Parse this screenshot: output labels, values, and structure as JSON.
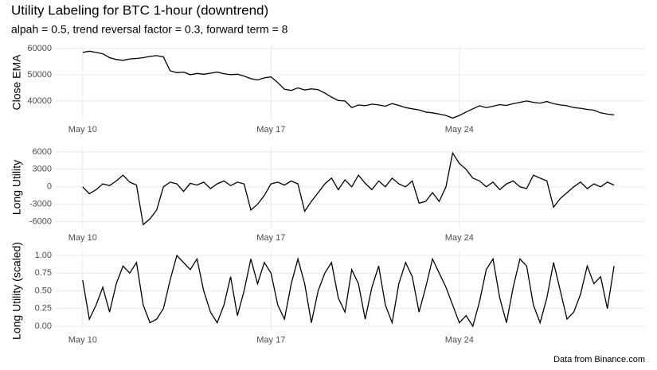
{
  "chart_data": [
    {
      "type": "line",
      "title": "Utility Labeling for BTC 1-hour (downtrend)",
      "subtitle": "alpah = 0.5, trend reversal factor = 0.3, forward term = 8",
      "ylabel": "Close EMA",
      "grid": true,
      "x": [
        0,
        0.25,
        0.5,
        0.75,
        1,
        1.25,
        1.5,
        1.75,
        2,
        2.25,
        2.5,
        2.75,
        3,
        3.25,
        3.5,
        3.75,
        4,
        4.25,
        4.5,
        4.75,
        5,
        5.25,
        5.5,
        5.75,
        6,
        6.25,
        6.5,
        6.75,
        7,
        7.25,
        7.5,
        7.75,
        8,
        8.25,
        8.5,
        8.75,
        9,
        9.25,
        9.5,
        9.75,
        10,
        10.25,
        10.5,
        10.75,
        11,
        11.25,
        11.5,
        11.75,
        12,
        12.25,
        12.5,
        12.75,
        13,
        13.25,
        13.5,
        13.75,
        14,
        14.25,
        14.5,
        14.75,
        15,
        15.25,
        15.5,
        15.75,
        16,
        16.25,
        16.5,
        16.75,
        17,
        17.25,
        17.5,
        17.75,
        18,
        18.25,
        18.5,
        18.75,
        19,
        19.25,
        19.5,
        19.75
      ],
      "xlim": [
        -1,
        20.9
      ],
      "xticks": [
        {
          "value": 0,
          "label": "May 10"
        },
        {
          "value": 7,
          "label": "May 17"
        },
        {
          "value": 14,
          "label": "May 24"
        }
      ],
      "ylim": [
        33000,
        61200
      ],
      "yticks": [
        40000,
        50000,
        60000
      ],
      "series": [
        {
          "color": "#000000",
          "values": [
            58500,
            59000,
            58500,
            58000,
            56500,
            55800,
            55500,
            56000,
            56200,
            56500,
            57000,
            57300,
            56800,
            51500,
            50800,
            51000,
            50000,
            50500,
            50200,
            50600,
            51000,
            50400,
            50000,
            50200,
            49500,
            48500,
            48000,
            48800,
            49200,
            47000,
            44500,
            44000,
            45000,
            44200,
            44600,
            44300,
            43000,
            41500,
            40200,
            40000,
            37500,
            38500,
            38200,
            38800,
            38500,
            38000,
            39000,
            38300,
            37500,
            37000,
            36600,
            35800,
            35500,
            35000,
            34500,
            33500,
            34500,
            35800,
            37000,
            38200,
            37500,
            38000,
            38600,
            38300,
            39000,
            39500,
            40000,
            39500,
            39200,
            39800,
            39000,
            38500,
            38200,
            37500,
            37200,
            36800,
            36500,
            35500,
            35000,
            34700
          ]
        }
      ]
    },
    {
      "type": "line",
      "ylabel": "Long Utility",
      "grid": true,
      "x": [
        0,
        0.25,
        0.5,
        0.75,
        1,
        1.25,
        1.5,
        1.75,
        2,
        2.25,
        2.5,
        2.75,
        3,
        3.25,
        3.5,
        3.75,
        4,
        4.25,
        4.5,
        4.75,
        5,
        5.25,
        5.5,
        5.75,
        6,
        6.25,
        6.5,
        6.75,
        7,
        7.25,
        7.5,
        7.75,
        8,
        8.25,
        8.5,
        8.75,
        9,
        9.25,
        9.5,
        9.75,
        10,
        10.25,
        10.5,
        10.75,
        11,
        11.25,
        11.5,
        11.75,
        12,
        12.25,
        12.5,
        12.75,
        13,
        13.25,
        13.5,
        13.75,
        14,
        14.25,
        14.5,
        14.75,
        15,
        15.25,
        15.5,
        15.75,
        16,
        16.25,
        16.5,
        16.75,
        17,
        17.25,
        17.5,
        17.75,
        18,
        18.25,
        18.5,
        18.75,
        19,
        19.25,
        19.5,
        19.75
      ],
      "xlim": [
        -1,
        20.9
      ],
      "xticks": [
        {
          "value": 0,
          "label": "May 10"
        },
        {
          "value": 7,
          "label": "May 17"
        },
        {
          "value": 14,
          "label": "May 24"
        }
      ],
      "ylim": [
        -7000,
        6800
      ],
      "yticks": [
        6000,
        3000,
        0,
        -3000,
        -6000
      ],
      "series": [
        {
          "color": "#000000",
          "values": [
            0,
            -1200,
            -500,
            500,
            200,
            1000,
            2000,
            800,
            300,
            -6500,
            -5500,
            -4000,
            0,
            800,
            500,
            -800,
            600,
            300,
            800,
            -300,
            500,
            1000,
            200,
            800,
            500,
            -4000,
            -3000,
            -1500,
            500,
            800,
            300,
            1000,
            500,
            -4200,
            -2500,
            -1000,
            500,
            1500,
            -500,
            1200,
            0,
            2000,
            600,
            -500,
            1000,
            0,
            1500,
            500,
            0,
            1000,
            -2800,
            -2500,
            -1000,
            -2500,
            0,
            5800,
            4000,
            3000,
            1500,
            1000,
            0,
            800,
            -500,
            500,
            1000,
            0,
            -300,
            2000,
            1500,
            1000,
            -3500,
            -2000,
            -1000,
            0,
            800,
            -300,
            500,
            0,
            800,
            300
          ]
        }
      ]
    },
    {
      "type": "line",
      "ylabel": "Long Utility (scaled)",
      "caption": "Data from Binance.com",
      "grid": true,
      "x": [
        0,
        0.25,
        0.5,
        0.75,
        1,
        1.25,
        1.5,
        1.75,
        2,
        2.25,
        2.5,
        2.75,
        3,
        3.25,
        3.5,
        3.75,
        4,
        4.25,
        4.5,
        4.75,
        5,
        5.25,
        5.5,
        5.75,
        6,
        6.25,
        6.5,
        6.75,
        7,
        7.25,
        7.5,
        7.75,
        8,
        8.25,
        8.5,
        8.75,
        9,
        9.25,
        9.5,
        9.75,
        10,
        10.25,
        10.5,
        10.75,
        11,
        11.25,
        11.5,
        11.75,
        12,
        12.25,
        12.5,
        12.75,
        13,
        13.25,
        13.5,
        13.75,
        14,
        14.25,
        14.5,
        14.75,
        15,
        15.25,
        15.5,
        15.75,
        16,
        16.25,
        16.5,
        16.75,
        17,
        17.25,
        17.5,
        17.75,
        18,
        18.25,
        18.5,
        18.75,
        19,
        19.25,
        19.5,
        19.75
      ],
      "xlim": [
        -1,
        20.9
      ],
      "xticks": [
        {
          "value": 0,
          "label": "May 10"
        },
        {
          "value": 7,
          "label": "May 17"
        },
        {
          "value": 14,
          "label": "May 24"
        }
      ],
      "ylim": [
        -0.05,
        1.05
      ],
      "yticks": [
        {
          "value": 0,
          "label": "0.00"
        },
        {
          "value": 0.25,
          "label": "0.25"
        },
        {
          "value": 0.5,
          "label": "0.50"
        },
        {
          "value": 0.75,
          "label": "0.75"
        },
        {
          "value": 1,
          "label": "1.00"
        }
      ],
      "series": [
        {
          "color": "#000000",
          "values": [
            0.65,
            0.1,
            0.3,
            0.55,
            0.2,
            0.6,
            0.85,
            0.75,
            0.9,
            0.3,
            0.05,
            0.1,
            0.25,
            0.65,
            1.0,
            0.9,
            0.8,
            0.95,
            0.5,
            0.2,
            0.05,
            0.3,
            0.7,
            0.15,
            0.5,
            0.95,
            0.6,
            0.9,
            0.75,
            0.3,
            0.1,
            0.6,
            0.95,
            0.6,
            0.05,
            0.5,
            0.75,
            0.9,
            0.4,
            0.2,
            0.8,
            0.6,
            0.1,
            0.55,
            0.85,
            0.3,
            0.05,
            0.6,
            0.9,
            0.7,
            0.2,
            0.55,
            0.95,
            0.75,
            0.55,
            0.3,
            0.05,
            0.15,
            0.0,
            0.35,
            0.8,
            0.95,
            0.4,
            0.05,
            0.55,
            0.95,
            0.85,
            0.3,
            0.05,
            0.4,
            0.9,
            0.5,
            0.1,
            0.2,
            0.45,
            0.85,
            0.6,
            0.7,
            0.25,
            0.85
          ]
        }
      ]
    }
  ]
}
